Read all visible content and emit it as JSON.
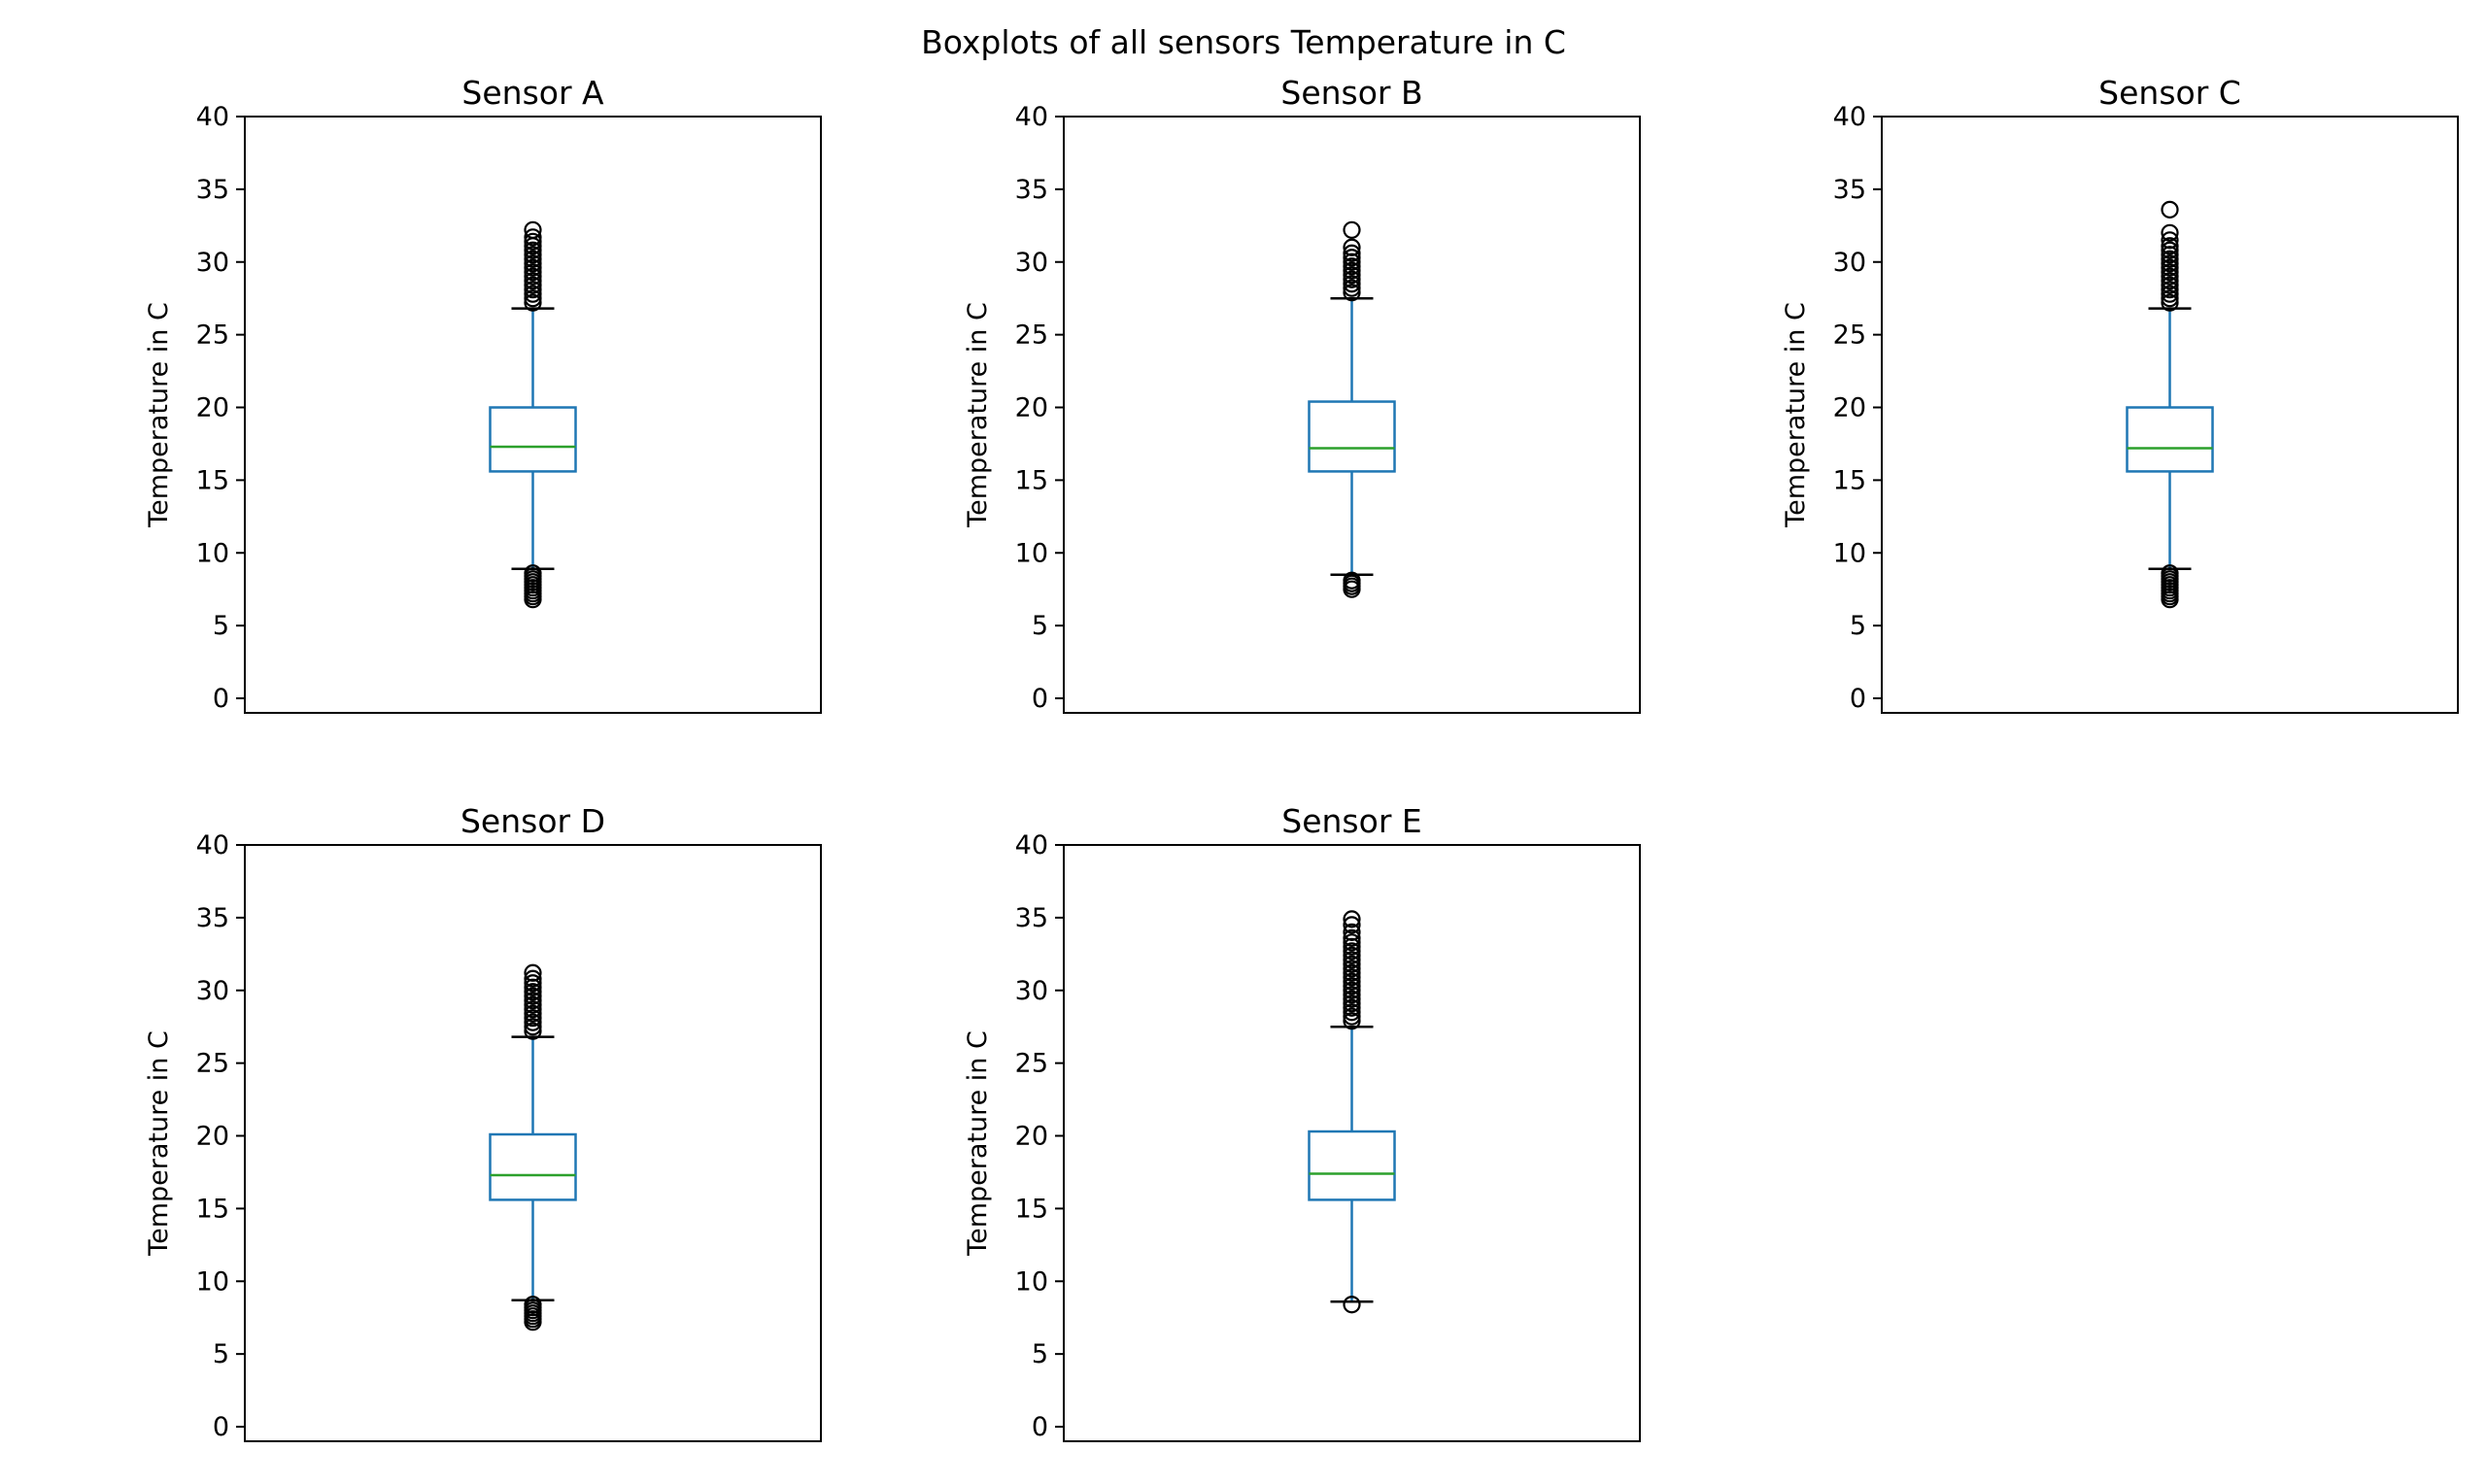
{
  "chart_data": {
    "type": "boxplot",
    "title": "Boxplots of all sensors Temperature in C",
    "ylim": [
      -1,
      40
    ],
    "yticks": [
      0,
      5,
      10,
      15,
      20,
      25,
      30,
      35,
      40
    ],
    "grid": false,
    "colors": {
      "box": "#1f77b4",
      "median": "#2ca02c",
      "whisker": "#1f77b4",
      "cap": "#000000",
      "flier": "#000000",
      "axes": "#000000"
    },
    "panels": [
      {
        "title": "Sensor A",
        "ylabel": "Temperature in C",
        "whisker_low": 8.9,
        "q1": 15.6,
        "median": 17.3,
        "q3": 20.0,
        "whisker_high": 26.8,
        "fliers": [
          6.8,
          7.0,
          7.2,
          7.4,
          7.6,
          7.8,
          8.0,
          8.2,
          8.4,
          8.6,
          27.2,
          27.5,
          27.8,
          28.1,
          28.4,
          28.7,
          29.0,
          29.3,
          29.6,
          29.9,
          30.2,
          30.5,
          30.8,
          31.1,
          31.4,
          31.7,
          32.2
        ]
      },
      {
        "title": "Sensor B",
        "ylabel": "Temperature in C",
        "whisker_low": 8.5,
        "q1": 15.6,
        "median": 17.2,
        "q3": 20.4,
        "whisker_high": 27.5,
        "fliers": [
          7.5,
          7.7,
          7.9,
          8.1,
          27.9,
          28.2,
          28.5,
          28.8,
          29.1,
          29.4,
          29.7,
          30.0,
          30.3,
          30.6,
          31.0,
          32.2
        ]
      },
      {
        "title": "Sensor C",
        "ylabel": "Temperature in C",
        "whisker_low": 8.9,
        "q1": 15.6,
        "median": 17.2,
        "q3": 20.0,
        "whisker_high": 26.8,
        "fliers": [
          6.8,
          7.0,
          7.2,
          7.4,
          7.6,
          7.8,
          8.0,
          8.2,
          8.4,
          8.6,
          27.2,
          27.5,
          27.8,
          28.1,
          28.4,
          28.7,
          29.0,
          29.3,
          29.6,
          29.9,
          30.2,
          30.5,
          30.8,
          31.1,
          31.5,
          32.0,
          33.6
        ]
      },
      {
        "title": "Sensor D",
        "ylabel": "Temperature in C",
        "whisker_low": 8.7,
        "q1": 15.6,
        "median": 17.3,
        "q3": 20.1,
        "whisker_high": 26.8,
        "fliers": [
          7.2,
          7.4,
          7.6,
          7.8,
          8.0,
          8.2,
          8.4,
          27.2,
          27.5,
          27.8,
          28.1,
          28.4,
          28.7,
          29.0,
          29.3,
          29.6,
          29.9,
          30.2,
          30.5,
          30.8,
          31.2
        ]
      },
      {
        "title": "Sensor E",
        "ylabel": "Temperature in C",
        "whisker_low": 8.6,
        "q1": 15.6,
        "median": 17.4,
        "q3": 20.3,
        "whisker_high": 27.5,
        "fliers": [
          8.4,
          27.9,
          28.2,
          28.5,
          28.8,
          29.1,
          29.4,
          29.7,
          30.0,
          30.3,
          30.6,
          30.9,
          31.2,
          31.5,
          31.8,
          32.1,
          32.4,
          32.7,
          33.0,
          33.3,
          33.6,
          34.0,
          34.5,
          34.9
        ]
      }
    ]
  }
}
